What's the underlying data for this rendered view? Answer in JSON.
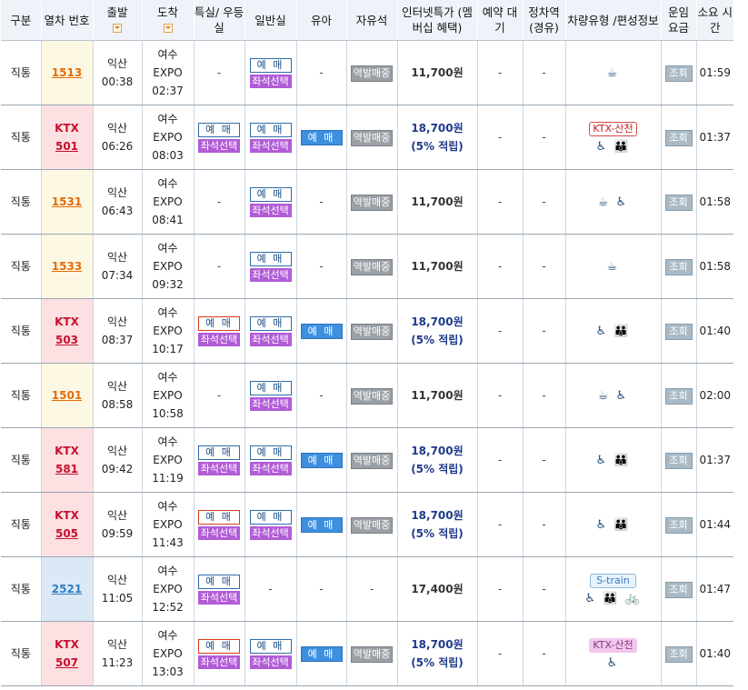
{
  "headers": {
    "type": "구분",
    "train_no": "열차 번호",
    "depart": "출발",
    "arrive": "도착",
    "special": "특실/ 우등실",
    "general": "일반실",
    "infant": "유아",
    "free_seat": "자유석",
    "internet_special": "인터넷특가 (멤버십 혜택)",
    "reserve_wait": "예약 대기",
    "stop_station": "정차역 (경유)",
    "car_type": "차량유형 /편성정보",
    "fare": "운임 요금",
    "duration": "소요 시간"
  },
  "labels": {
    "reserve": "예 매",
    "seat_select": "좌석선택",
    "onsite_sale": "역발매중",
    "view": "조회",
    "dash": "-"
  },
  "rows": [
    {
      "type": "직통",
      "train_kind": "",
      "train_no": "1513",
      "depart_station": "익산",
      "depart_time": "00:38",
      "arrive_station": "여수 EXPO",
      "arrive_time": "02:37",
      "special": null,
      "general": "blue",
      "infant": false,
      "free_seat": true,
      "price": "11,700원",
      "price_note": "",
      "wait": "-",
      "stop": "-",
      "car_badge": "",
      "car_icons": "☕",
      "duration": "01:59"
    },
    {
      "type": "직통",
      "train_kind": "KTX",
      "train_no": "501",
      "depart_station": "익산",
      "depart_time": "06:26",
      "arrive_station": "여수 EXPO",
      "arrive_time": "08:03",
      "special": "blue",
      "general": "blue",
      "infant": true,
      "free_seat": true,
      "price": "18,700원",
      "price_note": "(5% 적립)",
      "wait": "-",
      "stop": "-",
      "car_badge": "KTX-산천",
      "car_icons": "♿ 👪",
      "duration": "01:37"
    },
    {
      "type": "직통",
      "train_kind": "",
      "train_no": "1531",
      "depart_station": "익산",
      "depart_time": "06:43",
      "arrive_station": "여수 EXPO",
      "arrive_time": "08:41",
      "special": null,
      "general": "blue",
      "infant": false,
      "free_seat": true,
      "price": "11,700원",
      "price_note": "",
      "wait": "-",
      "stop": "-",
      "car_badge": "",
      "car_icons": "☕ ♿",
      "duration": "01:58"
    },
    {
      "type": "직통",
      "train_kind": "",
      "train_no": "1533",
      "depart_station": "익산",
      "depart_time": "07:34",
      "arrive_station": "여수 EXPO",
      "arrive_time": "09:32",
      "special": null,
      "general": "blue",
      "infant": false,
      "free_seat": true,
      "price": "11,700원",
      "price_note": "",
      "wait": "-",
      "stop": "-",
      "car_badge": "",
      "car_icons": "☕",
      "duration": "01:58"
    },
    {
      "type": "직통",
      "train_kind": "KTX",
      "train_no": "503",
      "depart_station": "익산",
      "depart_time": "08:37",
      "arrive_station": "여수 EXPO",
      "arrive_time": "10:17",
      "special": "red",
      "general": "blue",
      "infant": true,
      "free_seat": true,
      "price": "18,700원",
      "price_note": "(5% 적립)",
      "wait": "-",
      "stop": "-",
      "car_badge": "",
      "car_icons": "♿ 👪",
      "duration": "01:40"
    },
    {
      "type": "직통",
      "train_kind": "",
      "train_no": "1501",
      "depart_station": "익산",
      "depart_time": "08:58",
      "arrive_station": "여수 EXPO",
      "arrive_time": "10:58",
      "special": null,
      "general": "blue",
      "infant": false,
      "free_seat": true,
      "price": "11,700원",
      "price_note": "",
      "wait": "-",
      "stop": "-",
      "car_badge": "",
      "car_icons": "☕ ♿",
      "duration": "02:00"
    },
    {
      "type": "직통",
      "train_kind": "KTX",
      "train_no": "581",
      "depart_station": "익산",
      "depart_time": "09:42",
      "arrive_station": "여수 EXPO",
      "arrive_time": "11:19",
      "special": "blue",
      "general": "blue",
      "infant": true,
      "free_seat": true,
      "price": "18,700원",
      "price_note": "(5% 적립)",
      "wait": "-",
      "stop": "-",
      "car_badge": "",
      "car_icons": "♿ 👪",
      "duration": "01:37"
    },
    {
      "type": "직통",
      "train_kind": "KTX",
      "train_no": "505",
      "depart_station": "익산",
      "depart_time": "09:59",
      "arrive_station": "여수 EXPO",
      "arrive_time": "11:43",
      "special": "red",
      "general": "blue",
      "infant": true,
      "free_seat": true,
      "price": "18,700원",
      "price_note": "(5% 적립)",
      "wait": "-",
      "stop": "-",
      "car_badge": "",
      "car_icons": "♿ 👪",
      "duration": "01:44"
    },
    {
      "type": "직통",
      "train_kind": "",
      "train_no": "2521",
      "depart_station": "익산",
      "depart_time": "11:05",
      "arrive_station": "여수 EXPO",
      "arrive_time": "12:52",
      "special": "blue",
      "general": null,
      "infant": false,
      "free_seat": false,
      "price": "17,400원",
      "price_note": "",
      "wait": "-",
      "stop": "-",
      "car_badge": "S-train",
      "car_icons": "♿ 👪 🚲",
      "duration": "01:47"
    },
    {
      "type": "직통",
      "train_kind": "KTX",
      "train_no": "507",
      "depart_station": "익산",
      "depart_time": "11:23",
      "arrive_station": "여수 EXPO",
      "arrive_time": "13:03",
      "special": "red",
      "general": "blue",
      "infant": true,
      "free_seat": true,
      "price": "18,700원",
      "price_note": "(5% 적립)",
      "wait": "-",
      "stop": "-",
      "car_badge": "KTX-산천",
      "car_icons": "♿",
      "duration": "01:40"
    }
  ]
}
